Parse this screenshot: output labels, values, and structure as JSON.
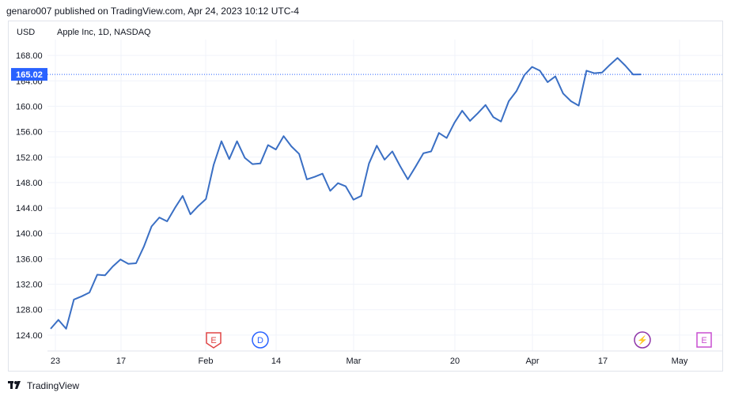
{
  "header": {
    "text": "genaro007 published on TradingView.com, Apr 24, 2023 10:12 UTC-4"
  },
  "chart_header": {
    "currency": "USD",
    "symbol": "Apple Inc, 1D, NASDAQ"
  },
  "footer": {
    "brand": "TradingView",
    "logo_icon": "tradingview-logo-icon"
  },
  "colors": {
    "line": "#3a6fc4",
    "price_tag_bg": "#2962ff",
    "grid": "#f0f3fa",
    "earnings": "#e04545",
    "dividend": "#2962ff",
    "split": "#8e35a8",
    "earnings_future": "#c94fd0"
  },
  "chart_data": {
    "type": "line",
    "title": "Apple Inc, 1D, NASDAQ",
    "xlabel": "",
    "ylabel": "USD",
    "ylim": [
      121.5,
      170.5
    ],
    "yticks": [
      "124.00",
      "128.00",
      "132.00",
      "136.00",
      "140.00",
      "144.00",
      "148.00",
      "152.00",
      "156.00",
      "160.00",
      "164.00",
      "168.00"
    ],
    "xticks": [
      "23",
      "17",
      "Feb",
      "14",
      "Mar",
      "20",
      "Apr",
      "17",
      "May"
    ],
    "last_price": "165.02",
    "grid": true,
    "series": [
      {
        "values": [
          125.0,
          126.4,
          125.0,
          129.6,
          130.1,
          130.7,
          133.5,
          133.4,
          134.8,
          135.9,
          135.2,
          135.3,
          137.9,
          141.1,
          142.5,
          141.9,
          144.0,
          145.9,
          143.0,
          144.3,
          145.4,
          150.8,
          154.5,
          151.7,
          154.5,
          151.9,
          150.9,
          151.0,
          153.9,
          153.2,
          155.3,
          153.7,
          152.5,
          148.5,
          148.9,
          149.4,
          146.7,
          147.9,
          147.4,
          145.3,
          145.9,
          151.0,
          153.8,
          151.6,
          152.9,
          150.6,
          148.5,
          150.5,
          152.6,
          152.9,
          155.8,
          155.0,
          157.4,
          159.3,
          157.7,
          158.9,
          160.2,
          158.3,
          157.6,
          160.8,
          162.4,
          164.9,
          166.2,
          165.6,
          163.8,
          164.7,
          162.0,
          160.8,
          160.1,
          165.6,
          165.2,
          165.3,
          166.5,
          167.6,
          166.4,
          165.0,
          165.02
        ]
      }
    ],
    "markers": [
      {
        "label": "E",
        "kind": "earnings",
        "name": "earnings-marker-feb"
      },
      {
        "label": "D",
        "kind": "dividend",
        "name": "dividend-marker"
      },
      {
        "label": "⚡",
        "kind": "split",
        "name": "event-marker-apr"
      },
      {
        "label": "E",
        "kind": "earnings_future",
        "name": "earnings-marker-may"
      }
    ]
  }
}
